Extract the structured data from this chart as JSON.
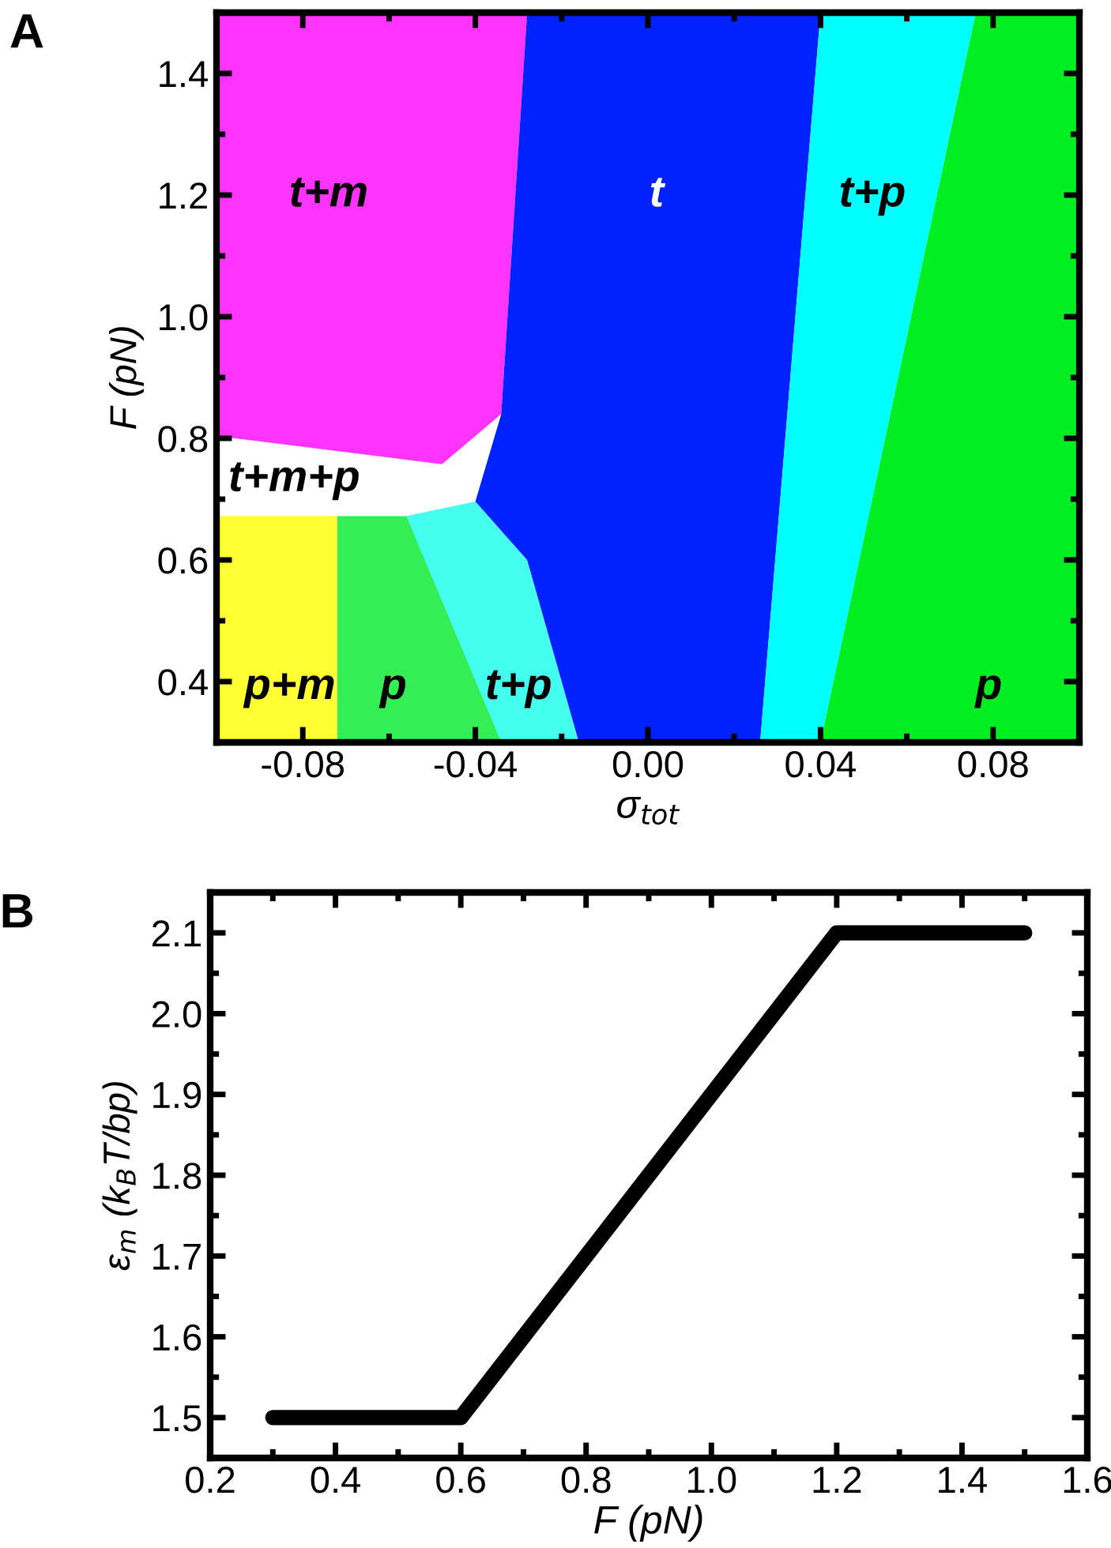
{
  "chart_data": [
    {
      "type": "scatter",
      "title": "A",
      "xlabel": "σ$_{tot}$",
      "ylabel": "F (pN)",
      "xlim": [
        -0.1,
        0.1
      ],
      "xticks": [
        {
          "value": -0.08,
          "label": "-0.08"
        },
        {
          "value": -0.04,
          "label": "-0.04"
        },
        {
          "value": 0,
          "label": "0.00"
        },
        {
          "value": 0.04,
          "label": "0.04"
        },
        {
          "value": 0.08,
          "label": "0.08"
        }
      ],
      "ylim": [
        0.3,
        1.5
      ],
      "yticks": [
        0.4,
        0.6,
        0.8,
        {
          "value": 1.0,
          "label": "1.0"
        },
        1.2,
        1.4
      ],
      "annotations": [
        "t+m",
        "t",
        "t+p",
        "t+m+p",
        "p+m",
        "p",
        "t+p",
        "p"
      ]
    },
    {
      "type": "line",
      "title": "B",
      "xlabel": "F (pN)",
      "ylabel": "ε$_{m}$ (k$_{B}$T/bp)",
      "x": [
        0.3,
        0.6,
        1.2,
        1.5
      ],
      "series": [
        {
          "color": "#000000",
          "values": [
            1.5,
            1.5,
            2.1,
            2.1
          ]
        }
      ],
      "xlim": [
        0.2,
        1.6
      ],
      "xticks": [
        0.2,
        0.4,
        0.6,
        0.8,
        {
          "value": 1.0,
          "label": "1.0"
        },
        1.2,
        1.4,
        1.6
      ],
      "ylim": [
        1.45,
        2.15
      ],
      "yticks": [
        1.5,
        1.6,
        1.7,
        1.8,
        1.9,
        {
          "value": 2.0,
          "label": "2.0"
        },
        2.1
      ],
      "grid": false,
      "marker": "none",
      "line_style": "solid"
    }
  ]
}
